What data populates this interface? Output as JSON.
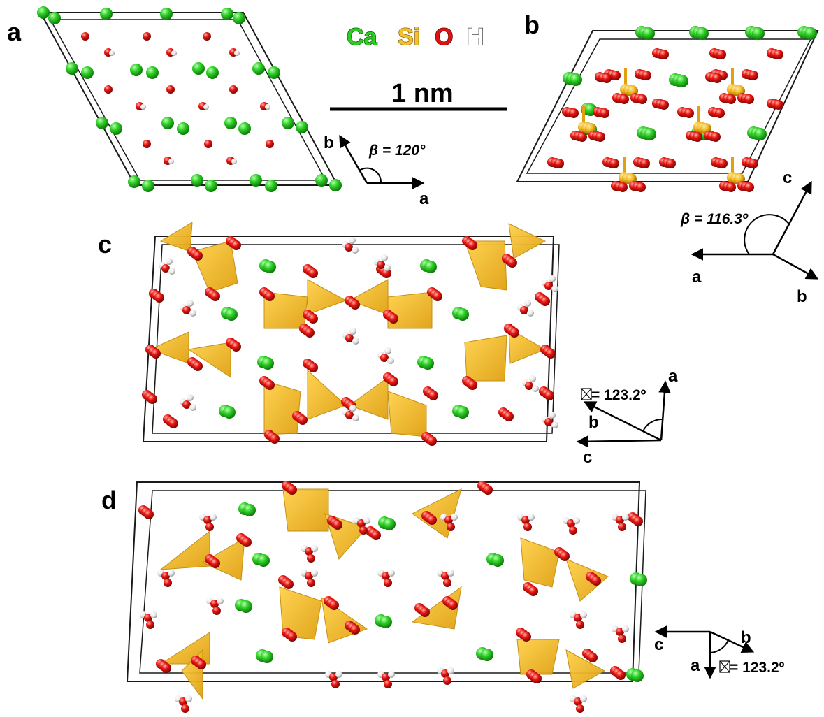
{
  "colors": {
    "Ca": "#22c81e",
    "Si": "#f2b81f",
    "O": "#e0120f",
    "H": "#f2f2f2",
    "cell_edge": "#1a1a1a"
  },
  "legend": {
    "Ca": "Ca",
    "Si": "Si",
    "O": "O",
    "H": "H"
  },
  "scalebar": {
    "label": "1 nm"
  },
  "panels": {
    "a": {
      "label": "a",
      "axes": {
        "x": "a",
        "y": "b"
      },
      "angle": "β = 120°"
    },
    "b": {
      "label": "b",
      "axes": {
        "c": "c",
        "a": "a",
        "b": "b"
      },
      "angle": "β = 116.3º"
    },
    "c": {
      "label": "c",
      "axes": {
        "a": "a",
        "b": "b",
        "c": "c"
      },
      "angle": "= 123.2º"
    },
    "d": {
      "label": "d",
      "axes": {
        "c": "c",
        "a": "a",
        "b": "b"
      },
      "angle": "= 123.2º"
    }
  }
}
